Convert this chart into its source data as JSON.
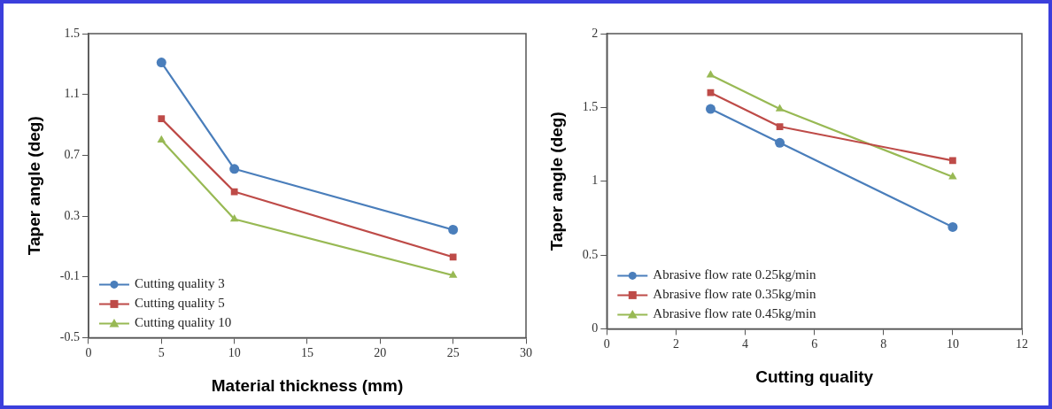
{
  "chart_data": [
    {
      "type": "line",
      "xlabel": "Material thickness (mm)",
      "ylabel": "Taper angle (deg)",
      "x": [
        5,
        10,
        25
      ],
      "series": [
        {
          "name": "Cutting quality 3",
          "color": "#4a7ebb",
          "marker": "circle",
          "values": [
            1.31,
            0.61,
            0.21
          ]
        },
        {
          "name": "Cutting quality 5",
          "color": "#be4b48",
          "marker": "square",
          "values": [
            0.94,
            0.46,
            0.03
          ]
        },
        {
          "name": "Cutting quality 10",
          "color": "#98b954",
          "marker": "triangle",
          "values": [
            0.8,
            0.28,
            -0.09
          ]
        }
      ],
      "xlim": [
        0,
        30
      ],
      "xticks": [
        0,
        5,
        10,
        15,
        20,
        25,
        30
      ],
      "ylim": [
        -0.5,
        1.5
      ],
      "yticks": [
        -0.5,
        -0.1,
        0.3,
        0.7,
        1.1,
        1.5
      ],
      "grid": false,
      "legend": "bottom left",
      "line_style": "solid"
    },
    {
      "type": "line",
      "xlabel": "Cutting quality",
      "ylabel": "Taper angle (deg)",
      "x": [
        3,
        5,
        10
      ],
      "series": [
        {
          "name": "Abrasive flow rate 0.25kg/min",
          "color": "#4a7ebb",
          "marker": "circle",
          "values": [
            1.49,
            1.26,
            0.69
          ]
        },
        {
          "name": "Abrasive flow rate 0.35kg/min",
          "color": "#be4b48",
          "marker": "square",
          "values": [
            1.6,
            1.37,
            1.14
          ]
        },
        {
          "name": "Abrasive flow rate 0.45kg/min",
          "color": "#98b954",
          "marker": "triangle",
          "values": [
            1.72,
            1.49,
            1.03
          ]
        }
      ],
      "xlim": [
        0,
        12
      ],
      "xticks": [
        0,
        2,
        4,
        6,
        8,
        10,
        12
      ],
      "ylim": [
        0,
        2
      ],
      "yticks": [
        0,
        0.5,
        1,
        1.5,
        2
      ],
      "grid": false,
      "legend": "bottom left",
      "line_style": "solid"
    }
  ]
}
